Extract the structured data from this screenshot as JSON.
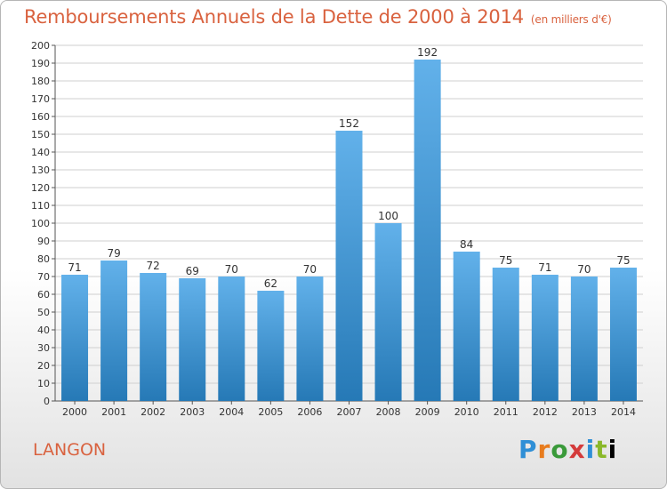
{
  "title": "Remboursements Annuels de la Dette de 2000 à 2014",
  "unit": "(en milliers d'€)",
  "location": "LANGON",
  "logo": {
    "text": "Proxiti",
    "letters": [
      "P",
      "r",
      "o",
      "x",
      "i",
      "t",
      "i"
    ]
  },
  "colors": {
    "bar_top": "#62b1ea",
    "bar_bottom": "#2679b6",
    "title": "#d9623f",
    "grid": "#cfcfcf"
  },
  "chart_data": {
    "type": "bar",
    "categories": [
      "2000",
      "2001",
      "2002",
      "2003",
      "2004",
      "2005",
      "2006",
      "2007",
      "2008",
      "2009",
      "2010",
      "2011",
      "2012",
      "2013",
      "2014"
    ],
    "values": [
      71,
      79,
      72,
      69,
      70,
      62,
      70,
      152,
      100,
      192,
      84,
      75,
      71,
      70,
      75
    ],
    "ylim": [
      0,
      200
    ],
    "yticks": [
      0,
      10,
      20,
      30,
      40,
      50,
      60,
      70,
      80,
      90,
      100,
      110,
      120,
      130,
      140,
      150,
      160,
      170,
      180,
      190,
      200
    ],
    "grid": true,
    "data_labels": true
  }
}
